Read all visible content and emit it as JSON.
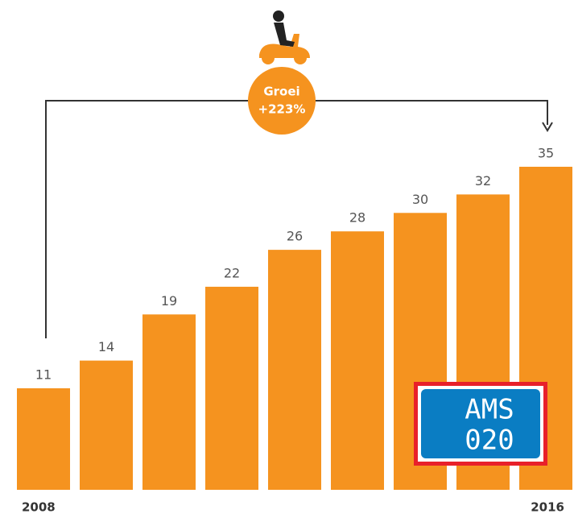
{
  "chart_data": {
    "type": "bar",
    "categories": [
      "2008",
      null,
      null,
      null,
      null,
      null,
      null,
      null,
      "2016"
    ],
    "values": [
      11,
      14,
      19,
      22,
      26,
      28,
      30,
      32,
      35
    ],
    "color": "#f5931f",
    "ylim": [
      0,
      35
    ],
    "annotations": [
      "Groei",
      "+223%"
    ],
    "badge": [
      "AMS",
      "020"
    ]
  }
}
